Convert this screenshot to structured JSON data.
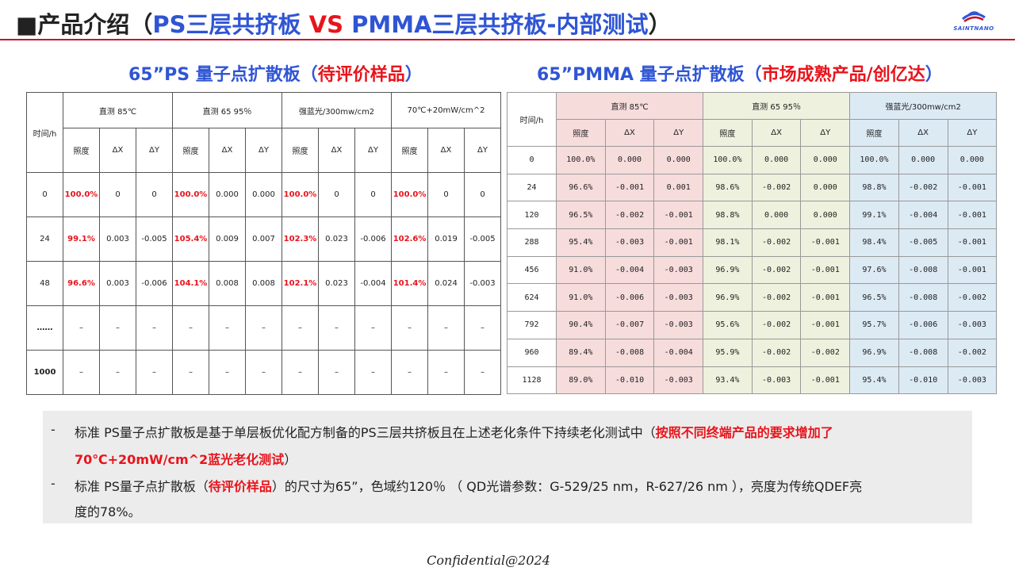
{
  "header": {
    "title_prefix": "■产品介绍（",
    "title_ps": "PS三层共挤板 ",
    "title_vs": "VS",
    "title_pmma": " PMMA三层共挤板-内部测试",
    "title_suffix": "）",
    "logo_text": "SAINTNANO"
  },
  "left": {
    "subtitle_main": "65”PS 量子点扩散板（",
    "subtitle_highlight": "待评价样品",
    "subtitle_end": "）",
    "row_header": "时间/h",
    "groups": [
      "直测 85℃",
      "直测 65 95％",
      "强蓝光/300mw/cm2",
      "70℃+20mW/cm^2"
    ],
    "sub_headers": [
      "照度",
      "ΔX",
      "ΔY"
    ],
    "rows": [
      {
        "time": "0",
        "cells": [
          "100.0%",
          "0",
          "0",
          "100.0%",
          "0.000",
          "0.000",
          "100.0%",
          "0",
          "0",
          "100.0%",
          "0",
          "0"
        ]
      },
      {
        "time": "24",
        "cells": [
          "99.1%",
          "0.003",
          "-0.005",
          "105.4%",
          "0.009",
          "0.007",
          "102.3%",
          "0.023",
          "-0.006",
          "102.6%",
          "0.019",
          "-0.005"
        ]
      },
      {
        "time": "48",
        "cells": [
          "96.6%",
          "0.003",
          "-0.006",
          "104.1%",
          "0.008",
          "0.008",
          "102.1%",
          "0.023",
          "-0.004",
          "101.4%",
          "0.024",
          "-0.003"
        ]
      },
      {
        "time": "……",
        "cells": [
          "–",
          "–",
          "–",
          "–",
          "–",
          "–",
          "–",
          "–",
          "–",
          "–",
          "–",
          "–"
        ]
      },
      {
        "time": "1000",
        "cells": [
          "–",
          "–",
          "–",
          "–",
          "–",
          "–",
          "–",
          "–",
          "–",
          "–",
          "–",
          "–"
        ]
      }
    ]
  },
  "right": {
    "subtitle_main": "65”PMMA 量子点扩散板（",
    "subtitle_highlight": "市场成熟产品/创亿达",
    "subtitle_end": "）",
    "row_header": "时间/h",
    "groups": [
      "直测 85℃",
      "直测 65 95％",
      "强蓝光/300mw/cm2"
    ],
    "sub_headers": [
      "照度",
      "ΔX",
      "ΔY"
    ],
    "rows": [
      {
        "time": "0",
        "cells": [
          "100.0%",
          "0.000",
          "0.000",
          "100.0%",
          "0.000",
          "0.000",
          "100.0%",
          "0.000",
          "0.000"
        ]
      },
      {
        "time": "24",
        "cells": [
          "96.6%",
          "-0.001",
          "0.001",
          "98.6%",
          "-0.002",
          "0.000",
          "98.8%",
          "-0.002",
          "-0.001"
        ]
      },
      {
        "time": "120",
        "cells": [
          "96.5%",
          "-0.002",
          "-0.001",
          "98.8%",
          "0.000",
          "0.000",
          "99.1%",
          "-0.004",
          "-0.001"
        ]
      },
      {
        "time": "288",
        "cells": [
          "95.4%",
          "-0.003",
          "-0.001",
          "98.1%",
          "-0.002",
          "-0.001",
          "98.4%",
          "-0.005",
          "-0.001"
        ]
      },
      {
        "time": "456",
        "cells": [
          "91.0%",
          "-0.004",
          "-0.003",
          "96.9%",
          "-0.002",
          "-0.001",
          "97.6%",
          "-0.008",
          "-0.001"
        ]
      },
      {
        "time": "624",
        "cells": [
          "91.0%",
          "-0.006",
          "-0.003",
          "96.9%",
          "-0.002",
          "-0.001",
          "96.5%",
          "-0.008",
          "-0.002"
        ]
      },
      {
        "time": "792",
        "cells": [
          "90.4%",
          "-0.007",
          "-0.003",
          "95.6%",
          "-0.002",
          "-0.001",
          "95.7%",
          "-0.006",
          "-0.003"
        ]
      },
      {
        "time": "960",
        "cells": [
          "89.4%",
          "-0.008",
          "-0.004",
          "95.9%",
          "-0.002",
          "-0.002",
          "96.9%",
          "-0.008",
          "-0.002"
        ]
      },
      {
        "time": "1128",
        "cells": [
          "89.0%",
          "-0.010",
          "-0.003",
          "93.4%",
          "-0.003",
          "-0.001",
          "95.4%",
          "-0.010",
          "-0.003"
        ]
      }
    ]
  },
  "notes": {
    "dash": "-",
    "line1_a": "标准 PS量子点扩散板是基于单层板优化配方制备的PS三层共挤板且在上述老化条件下持续老化测试中（",
    "line1_b": "按照不同终端产品的要求增加了",
    "line2_a": "70℃+20mW/cm^2蓝光老化测试",
    "line2_b": "）",
    "line3_a": "标准 PS量子点扩散板（",
    "line3_b": "待评价样品",
    "line3_c": "）的尺寸为65”，色域约120％ （ QD光谱参数：G-529/25 nm，R-627/26 nm ），亮度为传统QDEF亮",
    "line4": "度的78%。"
  },
  "footer": "Confidential@2024"
}
